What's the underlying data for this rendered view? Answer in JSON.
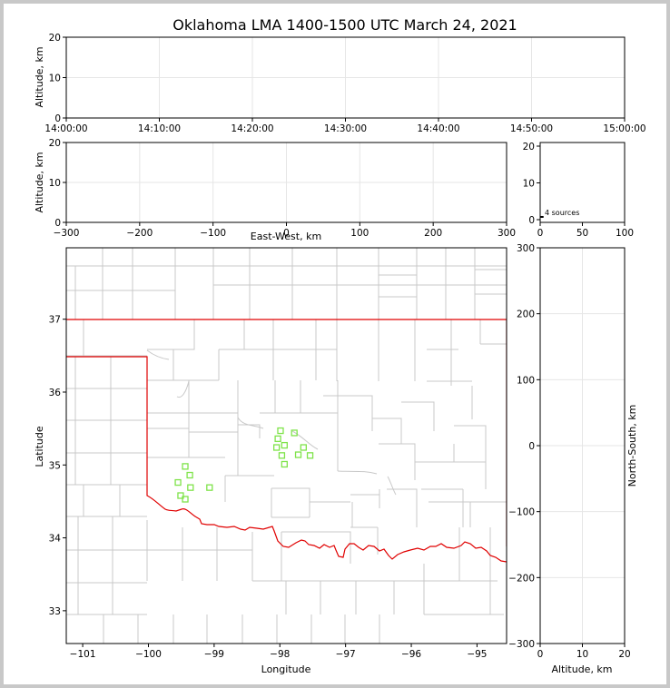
{
  "title": "Oklahoma LMA 1400-1500 UTC March 24, 2021",
  "colors": {
    "grid": "#e6e6e6",
    "state_border": "#e00000",
    "county": "#c8c8c8",
    "source": "#7fe34a"
  },
  "chart_data": [
    {
      "id": "time-altitude",
      "type": "scatter",
      "title": "",
      "ylabel": "Altitude, km",
      "xlabel": "",
      "xticks": [
        "14:00:00",
        "14:10:00",
        "14:20:00",
        "14:30:00",
        "14:40:00",
        "14:50:00",
        "15:00:00"
      ],
      "yticks": [
        "0",
        "10",
        "20"
      ],
      "ylim": [
        0,
        20
      ],
      "grid": true,
      "points": []
    },
    {
      "id": "east-west-altitude",
      "type": "scatter",
      "ylabel": "Altitude, km",
      "xlabel": "East-West, km",
      "xlim": [
        -300,
        300
      ],
      "ylim": [
        0,
        20
      ],
      "xticks": [
        "−300",
        "−200",
        "−100",
        "0",
        "100",
        "200",
        "300"
      ],
      "yticks": [
        "0",
        "10",
        "20"
      ],
      "grid": true,
      "points": []
    },
    {
      "id": "altitude-histogram",
      "type": "bar",
      "xlim": [
        0,
        100
      ],
      "ylim": [
        0,
        20
      ],
      "xticks": [
        "0",
        "50",
        "100"
      ],
      "yticks": [
        "0",
        "10",
        "20"
      ],
      "annotation": "4 sources",
      "bars": [
        {
          "altitude_km": 0.5,
          "count": 4
        }
      ]
    },
    {
      "id": "plan-view",
      "type": "scatter",
      "xlabel": "Longitude",
      "ylabel": "Latitude",
      "xlim": [
        -101.25,
        -94.55
      ],
      "ylim": [
        32.55,
        37.98
      ],
      "xticks": [
        "−101",
        "−100",
        "−99",
        "−98",
        "−97",
        "−96",
        "−95"
      ],
      "yticks": [
        "33",
        "34",
        "35",
        "36",
        "37"
      ],
      "grid": false,
      "points": [
        {
          "lon": -97.99,
          "lat": 35.47
        },
        {
          "lon": -97.78,
          "lat": 35.44
        },
        {
          "lon": -98.03,
          "lat": 35.36
        },
        {
          "lon": -97.93,
          "lat": 35.27
        },
        {
          "lon": -98.05,
          "lat": 35.24
        },
        {
          "lon": -97.64,
          "lat": 35.24
        },
        {
          "lon": -97.97,
          "lat": 35.13
        },
        {
          "lon": -97.72,
          "lat": 35.14
        },
        {
          "lon": -97.54,
          "lat": 35.13
        },
        {
          "lon": -97.93,
          "lat": 35.01
        },
        {
          "lon": -99.44,
          "lat": 34.98
        },
        {
          "lon": -99.37,
          "lat": 34.86
        },
        {
          "lon": -99.55,
          "lat": 34.76
        },
        {
          "lon": -99.36,
          "lat": 34.69
        },
        {
          "lon": -99.07,
          "lat": 34.69
        },
        {
          "lon": -99.51,
          "lat": 34.58
        },
        {
          "lon": -99.44,
          "lat": 34.53
        }
      ]
    },
    {
      "id": "altitude-north-south",
      "type": "scatter",
      "xlabel": "Altitude, km",
      "ylabel": "North-South, km",
      "xlim": [
        0,
        20
      ],
      "ylim": [
        -300,
        300
      ],
      "xticks": [
        "0",
        "10",
        "20"
      ],
      "yticks": [
        "−300",
        "−200",
        "−100",
        "0",
        "100",
        "200",
        "300"
      ],
      "grid": true,
      "points": []
    }
  ]
}
